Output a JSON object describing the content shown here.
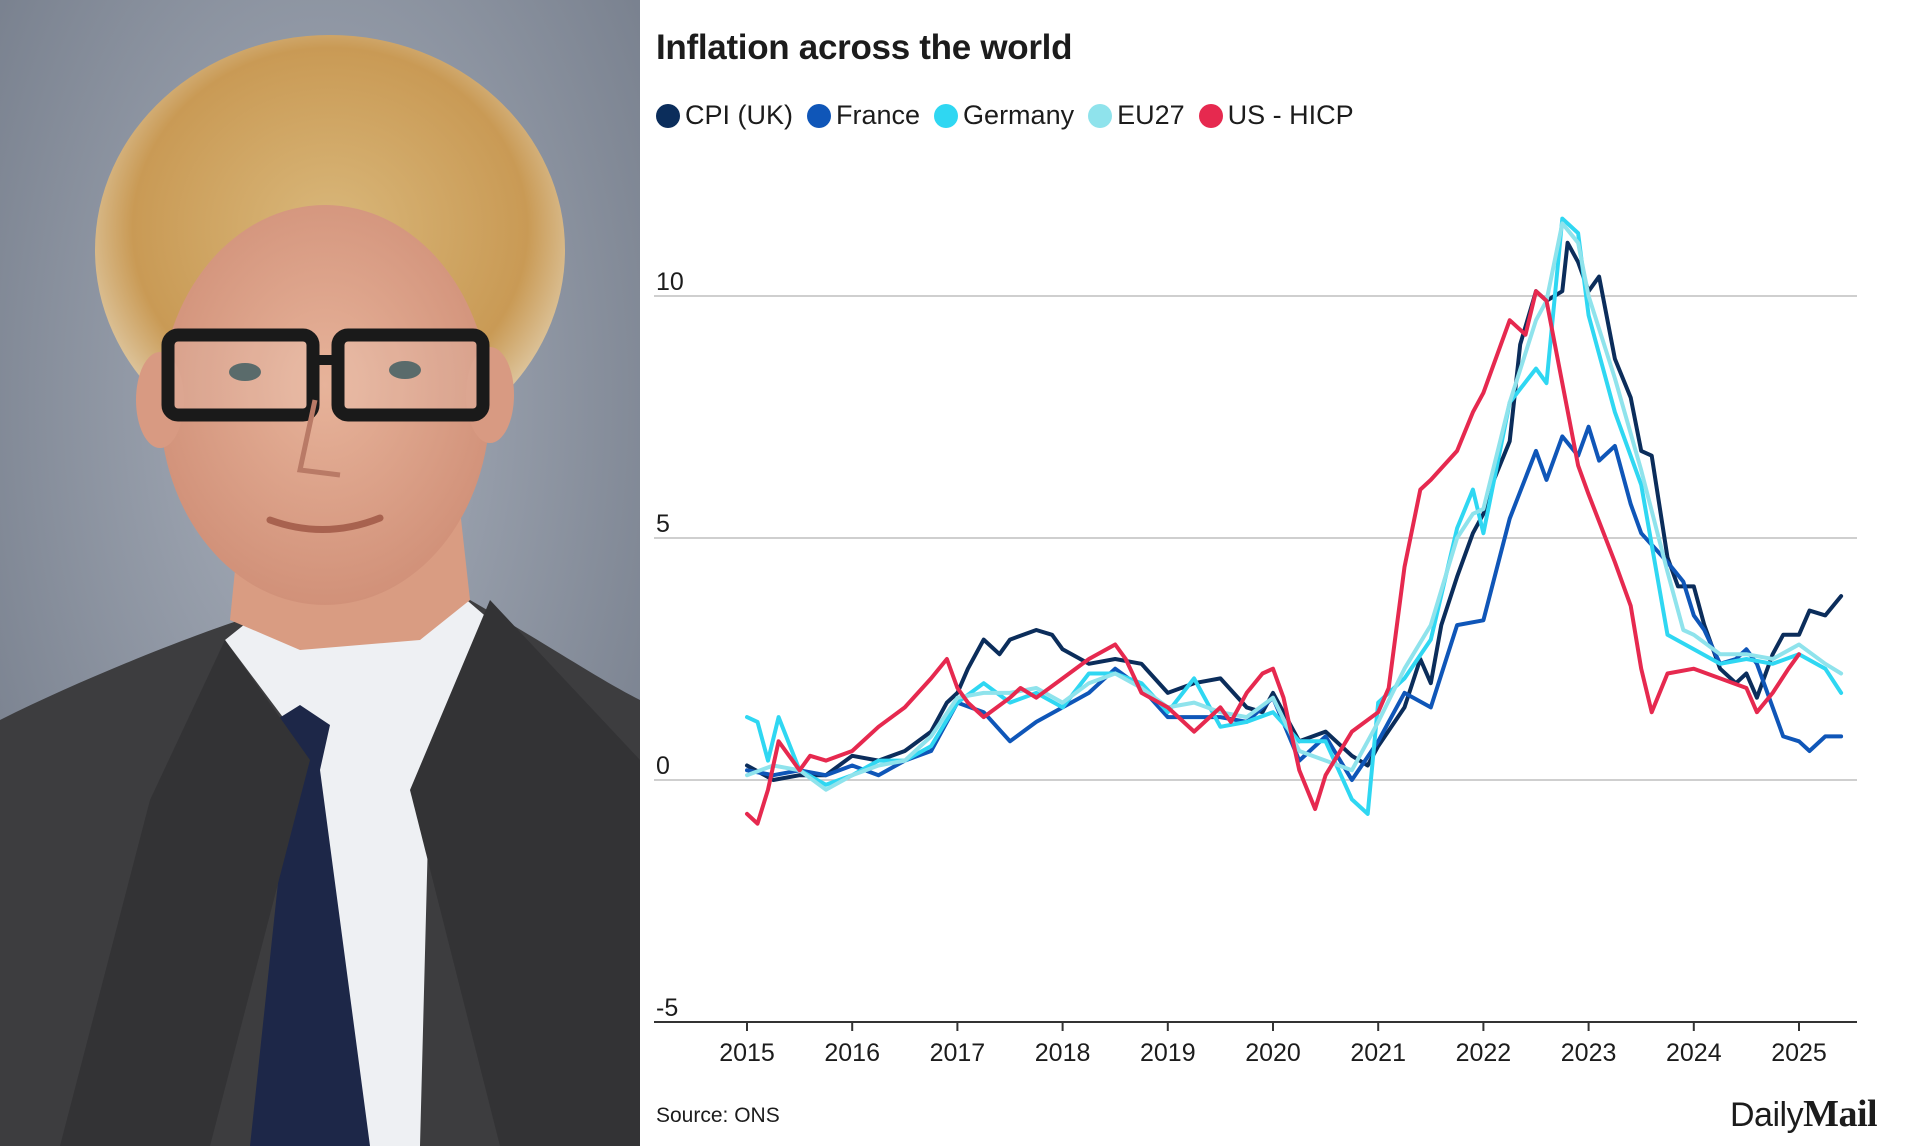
{
  "colors": {
    "cpi_uk": "#0b2d5b",
    "france": "#0f56b8",
    "germany": "#2fd7f2",
    "eu27": "#8fe3ec",
    "us_hicp": "#e6294f",
    "gridline": "#bfbfbf",
    "axis": "#333333",
    "photo_background": "#8a93a1"
  },
  "icons": {
    "portrait": "portrait-photo"
  },
  "source": "Source: ONS",
  "brand": {
    "part1": "Daily",
    "part2": "Mail"
  },
  "chart_data": {
    "type": "line",
    "title": "Inflation across the world",
    "xlabel": "",
    "ylabel": "",
    "x_ticks": [
      "2015",
      "2016",
      "2017",
      "2018",
      "2019",
      "2020",
      "2021",
      "2022",
      "2023",
      "2024",
      "2025"
    ],
    "y_ticks": [
      "10",
      "5",
      "0",
      "-5"
    ],
    "xlim": [
      2015,
      2025
    ],
    "ylim": [
      -5,
      12
    ],
    "grid": true,
    "legend_position": "top-left",
    "series": [
      {
        "name": "CPI (UK)",
        "color_key": "cpi_uk",
        "points": [
          [
            2015.0,
            0.3
          ],
          [
            2015.25,
            0.0
          ],
          [
            2015.5,
            0.1
          ],
          [
            2015.75,
            0.1
          ],
          [
            2016.0,
            0.5
          ],
          [
            2016.25,
            0.4
          ],
          [
            2016.5,
            0.6
          ],
          [
            2016.75,
            1.0
          ],
          [
            2016.9,
            1.6
          ],
          [
            2017.0,
            1.8
          ],
          [
            2017.1,
            2.3
          ],
          [
            2017.25,
            2.9
          ],
          [
            2017.4,
            2.6
          ],
          [
            2017.5,
            2.9
          ],
          [
            2017.75,
            3.1
          ],
          [
            2017.9,
            3.0
          ],
          [
            2018.0,
            2.7
          ],
          [
            2018.25,
            2.4
          ],
          [
            2018.5,
            2.5
          ],
          [
            2018.75,
            2.4
          ],
          [
            2019.0,
            1.8
          ],
          [
            2019.25,
            2.0
          ],
          [
            2019.5,
            2.1
          ],
          [
            2019.75,
            1.5
          ],
          [
            2019.9,
            1.4
          ],
          [
            2020.0,
            1.8
          ],
          [
            2020.25,
            0.8
          ],
          [
            2020.5,
            1.0
          ],
          [
            2020.75,
            0.5
          ],
          [
            2020.9,
            0.3
          ],
          [
            2021.0,
            0.7
          ],
          [
            2021.25,
            1.5
          ],
          [
            2021.4,
            2.5
          ],
          [
            2021.5,
            2.0
          ],
          [
            2021.6,
            3.2
          ],
          [
            2021.75,
            4.2
          ],
          [
            2021.9,
            5.1
          ],
          [
            2022.0,
            5.5
          ],
          [
            2022.1,
            6.2
          ],
          [
            2022.25,
            7.0
          ],
          [
            2022.35,
            9.0
          ],
          [
            2022.5,
            10.1
          ],
          [
            2022.6,
            9.9
          ],
          [
            2022.75,
            10.1
          ],
          [
            2022.8,
            11.1
          ],
          [
            2022.9,
            10.7
          ],
          [
            2023.0,
            10.1
          ],
          [
            2023.1,
            10.4
          ],
          [
            2023.25,
            8.7
          ],
          [
            2023.4,
            7.9
          ],
          [
            2023.5,
            6.8
          ],
          [
            2023.6,
            6.7
          ],
          [
            2023.75,
            4.6
          ],
          [
            2023.85,
            4.0
          ],
          [
            2024.0,
            4.0
          ],
          [
            2024.1,
            3.2
          ],
          [
            2024.25,
            2.3
          ],
          [
            2024.4,
            2.0
          ],
          [
            2024.5,
            2.2
          ],
          [
            2024.6,
            1.7
          ],
          [
            2024.75,
            2.6
          ],
          [
            2024.85,
            3.0
          ],
          [
            2025.0,
            3.0
          ],
          [
            2025.1,
            3.5
          ],
          [
            2025.25,
            3.4
          ],
          [
            2025.4,
            3.8
          ]
        ]
      },
      {
        "name": "France",
        "color_key": "france",
        "points": [
          [
            2015.0,
            0.2
          ],
          [
            2015.25,
            0.1
          ],
          [
            2015.5,
            0.2
          ],
          [
            2015.75,
            0.1
          ],
          [
            2016.0,
            0.3
          ],
          [
            2016.25,
            0.1
          ],
          [
            2016.5,
            0.4
          ],
          [
            2016.75,
            0.6
          ],
          [
            2017.0,
            1.6
          ],
          [
            2017.25,
            1.4
          ],
          [
            2017.5,
            0.8
          ],
          [
            2017.75,
            1.2
          ],
          [
            2018.0,
            1.5
          ],
          [
            2018.25,
            1.8
          ],
          [
            2018.5,
            2.3
          ],
          [
            2018.75,
            1.9
          ],
          [
            2019.0,
            1.3
          ],
          [
            2019.25,
            1.3
          ],
          [
            2019.5,
            1.3
          ],
          [
            2019.75,
            1.2
          ],
          [
            2020.0,
            1.7
          ],
          [
            2020.25,
            0.4
          ],
          [
            2020.5,
            0.9
          ],
          [
            2020.75,
            0.0
          ],
          [
            2021.0,
            0.8
          ],
          [
            2021.25,
            1.8
          ],
          [
            2021.5,
            1.5
          ],
          [
            2021.75,
            3.2
          ],
          [
            2022.0,
            3.3
          ],
          [
            2022.25,
            5.4
          ],
          [
            2022.5,
            6.8
          ],
          [
            2022.6,
            6.2
          ],
          [
            2022.75,
            7.1
          ],
          [
            2022.9,
            6.7
          ],
          [
            2023.0,
            7.3
          ],
          [
            2023.1,
            6.6
          ],
          [
            2023.25,
            6.9
          ],
          [
            2023.4,
            5.7
          ],
          [
            2023.5,
            5.1
          ],
          [
            2023.75,
            4.5
          ],
          [
            2023.9,
            4.1
          ],
          [
            2024.0,
            3.4
          ],
          [
            2024.1,
            3.1
          ],
          [
            2024.25,
            2.4
          ],
          [
            2024.4,
            2.5
          ],
          [
            2024.5,
            2.7
          ],
          [
            2024.6,
            2.4
          ],
          [
            2024.75,
            1.5
          ],
          [
            2024.85,
            0.9
          ],
          [
            2025.0,
            0.8
          ],
          [
            2025.1,
            0.6
          ],
          [
            2025.25,
            0.9
          ],
          [
            2025.4,
            0.9
          ]
        ]
      },
      {
        "name": "Germany",
        "color_key": "germany",
        "points": [
          [
            2015.0,
            1.3
          ],
          [
            2015.1,
            1.2
          ],
          [
            2015.2,
            0.4
          ],
          [
            2015.3,
            1.3
          ],
          [
            2015.5,
            0.2
          ],
          [
            2015.75,
            -0.1
          ],
          [
            2016.0,
            0.1
          ],
          [
            2016.25,
            0.4
          ],
          [
            2016.5,
            0.4
          ],
          [
            2016.75,
            0.7
          ],
          [
            2017.0,
            1.6
          ],
          [
            2017.25,
            2.0
          ],
          [
            2017.5,
            1.6
          ],
          [
            2017.75,
            1.8
          ],
          [
            2018.0,
            1.5
          ],
          [
            2018.25,
            2.2
          ],
          [
            2018.5,
            2.2
          ],
          [
            2018.75,
            2.0
          ],
          [
            2019.0,
            1.4
          ],
          [
            2019.25,
            2.1
          ],
          [
            2019.5,
            1.1
          ],
          [
            2019.75,
            1.2
          ],
          [
            2020.0,
            1.4
          ],
          [
            2020.25,
            0.8
          ],
          [
            2020.5,
            0.8
          ],
          [
            2020.75,
            -0.4
          ],
          [
            2020.9,
            -0.7
          ],
          [
            2021.0,
            1.6
          ],
          [
            2021.25,
            2.1
          ],
          [
            2021.5,
            2.9
          ],
          [
            2021.75,
            5.2
          ],
          [
            2021.9,
            6.0
          ],
          [
            2022.0,
            5.1
          ],
          [
            2022.25,
            7.8
          ],
          [
            2022.5,
            8.5
          ],
          [
            2022.6,
            8.2
          ],
          [
            2022.75,
            11.6
          ],
          [
            2022.9,
            11.3
          ],
          [
            2023.0,
            9.6
          ],
          [
            2023.25,
            7.6
          ],
          [
            2023.5,
            6.1
          ],
          [
            2023.75,
            3.0
          ],
          [
            2024.0,
            2.7
          ],
          [
            2024.25,
            2.4
          ],
          [
            2024.5,
            2.5
          ],
          [
            2024.75,
            2.4
          ],
          [
            2025.0,
            2.6
          ],
          [
            2025.25,
            2.3
          ],
          [
            2025.4,
            1.8
          ]
        ]
      },
      {
        "name": "EU27",
        "color_key": "eu27",
        "points": [
          [
            2015.0,
            0.1
          ],
          [
            2015.25,
            0.3
          ],
          [
            2015.5,
            0.2
          ],
          [
            2015.75,
            -0.2
          ],
          [
            2016.0,
            0.1
          ],
          [
            2016.25,
            0.3
          ],
          [
            2016.5,
            0.4
          ],
          [
            2016.75,
            0.9
          ],
          [
            2017.0,
            1.7
          ],
          [
            2017.25,
            1.8
          ],
          [
            2017.5,
            1.8
          ],
          [
            2017.75,
            1.9
          ],
          [
            2018.0,
            1.6
          ],
          [
            2018.25,
            2.0
          ],
          [
            2018.5,
            2.2
          ],
          [
            2018.75,
            1.9
          ],
          [
            2019.0,
            1.5
          ],
          [
            2019.25,
            1.6
          ],
          [
            2019.5,
            1.4
          ],
          [
            2019.75,
            1.3
          ],
          [
            2020.0,
            1.7
          ],
          [
            2020.25,
            0.6
          ],
          [
            2020.5,
            0.4
          ],
          [
            2020.75,
            0.2
          ],
          [
            2021.0,
            1.2
          ],
          [
            2021.25,
            2.3
          ],
          [
            2021.5,
            3.2
          ],
          [
            2021.75,
            5.0
          ],
          [
            2021.9,
            5.5
          ],
          [
            2022.0,
            5.6
          ],
          [
            2022.25,
            7.8
          ],
          [
            2022.5,
            9.5
          ],
          [
            2022.6,
            9.9
          ],
          [
            2022.75,
            11.5
          ],
          [
            2022.9,
            11.1
          ],
          [
            2023.0,
            10.0
          ],
          [
            2023.25,
            8.3
          ],
          [
            2023.5,
            6.4
          ],
          [
            2023.75,
            4.3
          ],
          [
            2023.9,
            3.1
          ],
          [
            2024.0,
            3.0
          ],
          [
            2024.25,
            2.6
          ],
          [
            2024.5,
            2.6
          ],
          [
            2024.75,
            2.5
          ],
          [
            2025.0,
            2.8
          ],
          [
            2025.25,
            2.4
          ],
          [
            2025.4,
            2.2
          ]
        ]
      },
      {
        "name": "US - HICP",
        "color_key": "us_hicp",
        "points": [
          [
            2015.0,
            -0.7
          ],
          [
            2015.1,
            -0.9
          ],
          [
            2015.2,
            -0.2
          ],
          [
            2015.3,
            0.8
          ],
          [
            2015.5,
            0.2
          ],
          [
            2015.6,
            0.5
          ],
          [
            2015.75,
            0.4
          ],
          [
            2016.0,
            0.6
          ],
          [
            2016.25,
            1.1
          ],
          [
            2016.5,
            1.5
          ],
          [
            2016.75,
            2.1
          ],
          [
            2016.9,
            2.5
          ],
          [
            2017.0,
            1.9
          ],
          [
            2017.1,
            1.6
          ],
          [
            2017.25,
            1.3
          ],
          [
            2017.5,
            1.7
          ],
          [
            2017.6,
            1.9
          ],
          [
            2017.75,
            1.7
          ],
          [
            2018.0,
            2.1
          ],
          [
            2018.25,
            2.5
          ],
          [
            2018.5,
            2.8
          ],
          [
            2018.6,
            2.5
          ],
          [
            2018.75,
            1.8
          ],
          [
            2019.0,
            1.5
          ],
          [
            2019.25,
            1.0
          ],
          [
            2019.5,
            1.5
          ],
          [
            2019.6,
            1.2
          ],
          [
            2019.75,
            1.8
          ],
          [
            2019.9,
            2.2
          ],
          [
            2020.0,
            2.3
          ],
          [
            2020.1,
            1.7
          ],
          [
            2020.25,
            0.2
          ],
          [
            2020.4,
            -0.6
          ],
          [
            2020.5,
            0.1
          ],
          [
            2020.75,
            1.0
          ],
          [
            2021.0,
            1.4
          ],
          [
            2021.1,
            1.9
          ],
          [
            2021.25,
            4.4
          ],
          [
            2021.4,
            6.0
          ],
          [
            2021.5,
            6.2
          ],
          [
            2021.75,
            6.8
          ],
          [
            2021.9,
            7.6
          ],
          [
            2022.0,
            8.0
          ],
          [
            2022.25,
            9.5
          ],
          [
            2022.4,
            9.2
          ],
          [
            2022.5,
            10.1
          ],
          [
            2022.6,
            9.9
          ],
          [
            2022.75,
            8.2
          ],
          [
            2022.9,
            6.5
          ],
          [
            2023.0,
            5.9
          ],
          [
            2023.25,
            4.5
          ],
          [
            2023.4,
            3.6
          ],
          [
            2023.5,
            2.3
          ],
          [
            2023.6,
            1.4
          ],
          [
            2023.75,
            2.2
          ],
          [
            2024.0,
            2.3
          ],
          [
            2024.25,
            2.1
          ],
          [
            2024.5,
            1.9
          ],
          [
            2024.6,
            1.4
          ],
          [
            2024.75,
            1.8
          ],
          [
            2024.9,
            2.3
          ],
          [
            2025.0,
            2.6
          ]
        ]
      }
    ]
  }
}
